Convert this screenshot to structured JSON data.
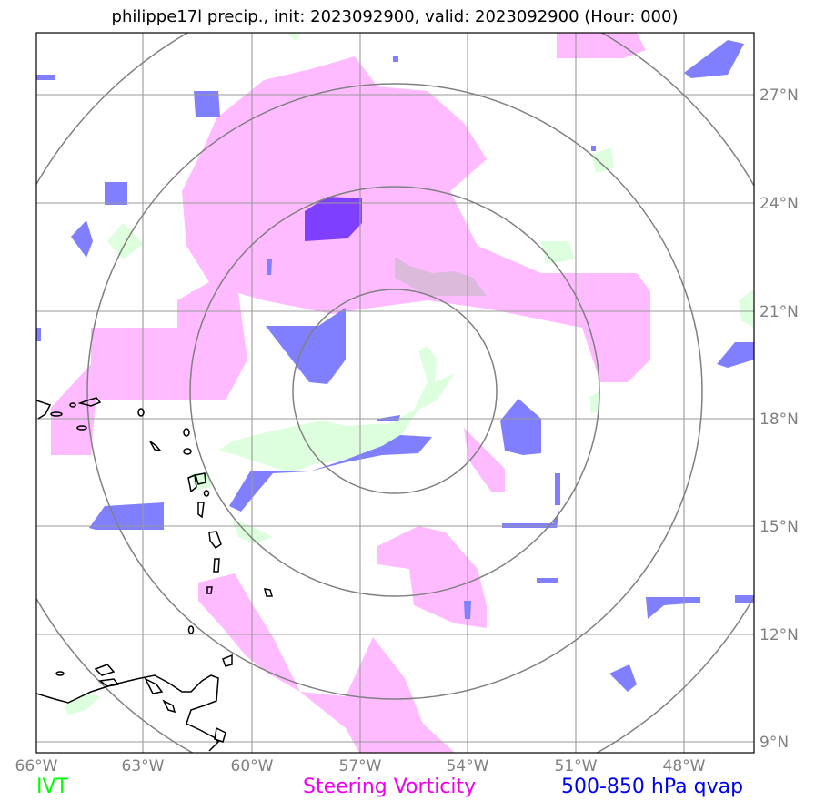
{
  "title": "philippe17l precip., init: 2023092900, valid: 2023092900 (Hour: 000)",
  "map": {
    "lon_ticks": [
      "66°W",
      "63°W",
      "60°W",
      "57°W",
      "54°W",
      "51°W",
      "48°W"
    ],
    "lat_ticks": [
      "27°N",
      "24°N",
      "21°N",
      "18°N",
      "15°N",
      "12°N",
      "9°N"
    ]
  },
  "legend": {
    "ivt": {
      "label": "IVT",
      "color": "#00ff00"
    },
    "vorticity": {
      "label": "Steering Vorticity",
      "color": "#ee00ee"
    },
    "qvap": {
      "label": "500-850 hPa qvap",
      "color": "#0000ee"
    }
  }
}
